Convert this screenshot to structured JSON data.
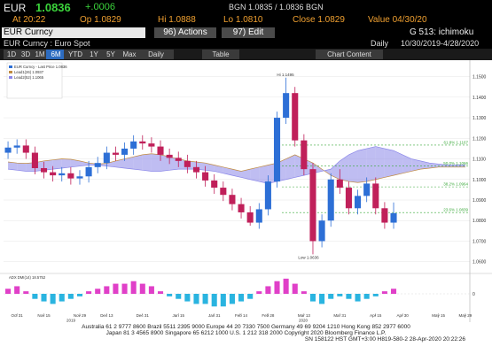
{
  "header": {
    "ticker": "EUR",
    "price": "1.0836",
    "change": "+.0006",
    "quote": "BGN 1.0835 / 1.0836 BGN",
    "at": "At 20:22",
    "open": "Op 1.0829",
    "high": "Hi 1.0888",
    "low": "Lo 1.0810",
    "close": "Close 1.0829",
    "value": "Value 04/30/20"
  },
  "toolbar": {
    "security": "EUR Curncy",
    "actions": "96) Actions",
    "edit": "97) Edit",
    "function": "G 513: ichimoku"
  },
  "subheader": {
    "name": "EUR Curncy : Euro Spot",
    "period": "Daily",
    "range": "10/30/2019-4/28/2020"
  },
  "tabs": [
    "1D",
    "3D",
    "1M",
    "6M",
    "YTD",
    "1Y",
    "5Y",
    "Max",
    "Daily",
    "Table",
    "Chart Content"
  ],
  "selected_tab": "6M",
  "chart_data": {
    "type": "candlestick",
    "categories": [
      null,
      "Oct 31",
      null,
      null,
      "Nov 15",
      null,
      null,
      null,
      "Nov 29",
      null,
      null,
      "Dec 13",
      null,
      null,
      null,
      "Dec 31",
      null,
      null,
      null,
      "Jan 15",
      null,
      null,
      null,
      "Jan 31",
      null,
      null,
      "Feb 14",
      null,
      null,
      "Feb 28",
      null,
      null,
      null,
      "Mar 13",
      null,
      null,
      null,
      "Mar 31",
      null,
      null,
      null,
      "Apr 15",
      null,
      null,
      "Apr 30",
      null,
      null,
      null,
      "May 15",
      null,
      null,
      "May 29"
    ],
    "x_years": [
      "2019",
      "2020"
    ],
    "ohlc": [
      [
        1.113,
        1.1185,
        1.11,
        1.1155
      ],
      [
        1.1155,
        1.1195,
        1.1125,
        1.1165
      ],
      [
        1.1165,
        1.1195,
        1.11,
        1.113
      ],
      [
        1.113,
        1.116,
        1.1025,
        1.1055
      ],
      [
        1.1055,
        1.1085,
        1.1005,
        1.1035
      ],
      [
        1.1035,
        1.1065,
        1.099,
        1.102
      ],
      [
        1.102,
        1.106,
        1.099,
        1.103
      ],
      [
        1.103,
        1.106,
        1.0975,
        1.1005
      ],
      [
        1.1005,
        1.1045,
        1.0975,
        1.1015
      ],
      [
        1.1015,
        1.109,
        1.0985,
        1.106
      ],
      [
        1.106,
        1.111,
        1.103,
        1.108
      ],
      [
        1.108,
        1.116,
        1.105,
        1.113
      ],
      [
        1.113,
        1.116,
        1.109,
        1.112
      ],
      [
        1.112,
        1.118,
        1.109,
        1.115
      ],
      [
        1.115,
        1.1215,
        1.112,
        1.1185
      ],
      [
        1.1185,
        1.1215,
        1.1145,
        1.1175
      ],
      [
        1.1175,
        1.1205,
        1.113,
        1.116
      ],
      [
        1.116,
        1.119,
        1.109,
        1.112
      ],
      [
        1.112,
        1.115,
        1.1075,
        1.1105
      ],
      [
        1.1105,
        1.1135,
        1.106,
        1.109
      ],
      [
        1.109,
        1.112,
        1.103,
        1.106
      ],
      [
        1.106,
        1.109,
        1.1005,
        1.1035
      ],
      [
        1.1035,
        1.1065,
        1.0965,
        1.0995
      ],
      [
        1.0995,
        1.1025,
        1.093,
        1.096
      ],
      [
        1.096,
        1.099,
        1.0895,
        1.0925
      ],
      [
        1.0925,
        1.0955,
        1.085,
        1.088
      ],
      [
        1.088,
        1.091,
        1.081,
        1.084
      ],
      [
        1.084,
        1.087,
        1.0775,
        1.079
      ],
      [
        1.079,
        1.0885,
        1.076,
        1.0855
      ],
      [
        1.0855,
        1.102,
        1.0825,
        1.099
      ],
      [
        1.099,
        1.133,
        1.096,
        1.13
      ],
      [
        1.13,
        1.1495,
        1.127,
        1.142
      ],
      [
        1.142,
        1.145,
        1.116,
        1.119
      ],
      [
        1.119,
        1.122,
        1.102,
        1.105
      ],
      [
        1.105,
        1.108,
        1.0636,
        1.07
      ],
      [
        1.07,
        1.083,
        1.067,
        1.08
      ],
      [
        1.08,
        1.103,
        1.077,
        1.1
      ],
      [
        1.1,
        1.105,
        1.093,
        1.096
      ],
      [
        1.096,
        1.099,
        1.083,
        1.086
      ],
      [
        1.086,
        1.095,
        1.083,
        1.092
      ],
      [
        1.092,
        1.101,
        1.089,
        1.098
      ],
      [
        1.098,
        1.101,
        1.083,
        1.086
      ],
      [
        1.086,
        1.089,
        1.076,
        1.079
      ],
      [
        1.079,
        1.0888,
        1.076,
        1.0836
      ],
      null,
      null,
      null,
      null,
      null,
      null,
      null,
      null
    ],
    "up_color": "#2d6fd6",
    "down_color": "#c0205a",
    "cloud": {
      "color": "#8a86e8",
      "series": [
        {
          "name": "Lead1(26) 1.0937",
          "color": "#c08a40",
          "values": [
            1.1085,
            1.108,
            1.1078,
            1.1082,
            1.109,
            1.1095,
            1.11,
            1.1098,
            1.109,
            1.108,
            1.1075,
            1.1078,
            1.109,
            1.11,
            1.111,
            1.112,
            1.1125,
            1.112,
            1.111,
            1.11,
            1.109,
            1.1085,
            1.108,
            1.107,
            1.106,
            1.105,
            1.104,
            1.105,
            1.106,
            1.107,
            1.108,
            1.11,
            1.112,
            1.11,
            1.108,
            1.105,
            1.102,
            1.1,
            1.099,
            1.0985,
            1.099,
            1.1,
            1.101,
            1.102,
            1.103,
            1.104,
            1.105,
            1.1055,
            1.106,
            1.106,
            1.106,
            1.106
          ]
        },
        {
          "name": "Lead2(52) 1.1065",
          "color": "#8a86e8",
          "values": [
            1.105,
            1.1045,
            1.104,
            1.104,
            1.1045,
            1.105,
            1.1055,
            1.106,
            1.1065,
            1.107,
            1.107,
            1.1065,
            1.106,
            1.1055,
            1.105,
            1.1045,
            1.104,
            1.104,
            1.1045,
            1.105,
            1.105,
            1.105,
            1.1045,
            1.104,
            1.103,
            1.102,
            1.101,
            1.1,
            1.099,
            1.098,
            1.099,
            1.1,
            1.101,
            1.102,
            1.103,
            1.104,
            1.105,
            1.109,
            1.112,
            1.114,
            1.115,
            1.116,
            1.115,
            1.114,
            1.112,
            1.11,
            1.109,
            1.108,
            1.1075,
            1.107,
            1.107,
            1.107
          ]
        }
      ]
    },
    "legend_title": "EUR Curncy - Last Price 1.0836",
    "ylim": [
      1.056,
      1.158
    ],
    "yticks": [
      {
        "value": 1.06,
        "label": "1.0600"
      },
      {
        "value": 1.07,
        "label": "1.0700"
      },
      {
        "value": 1.08,
        "label": "1.0800"
      },
      {
        "value": 1.09,
        "label": "1.0900"
      },
      {
        "value": 1.1,
        "label": "1.1000"
      },
      {
        "value": 1.11,
        "label": "1.1100"
      },
      {
        "value": 1.12,
        "label": "1.1200"
      },
      {
        "value": 1.13,
        "label": "1.1300"
      },
      {
        "value": 1.14,
        "label": "1.1400"
      },
      {
        "value": 1.15,
        "label": "1.1500"
      }
    ],
    "grid": true,
    "annotations": [
      {
        "value": 1.1495,
        "label": "Hi 1.1495"
      },
      {
        "value": 1.0636,
        "label": "Low 1.0636"
      }
    ],
    "fib_color": "#3aa83a",
    "fib": [
      {
        "value": 1.0839,
        "label": "23.6% 1.0839"
      },
      {
        "value": 1.0964,
        "label": "38.2% 1.0964"
      },
      {
        "value": 1.1066,
        "label": "50.0% 1.1066"
      },
      {
        "value": 1.1167,
        "label": "61.8% 1.1167"
      }
    ],
    "lower": {
      "ylim": [
        -0.007,
        0.007
      ],
      "yticks": [
        0
      ],
      "pos_color": "#e040c8",
      "neg_color": "#2ab4e0",
      "series": [
        {
          "name": "ADX DMI(14) 18.5752",
          "values": [
            0.002,
            0.003,
            0.001,
            -0.002,
            -0.003,
            -0.004,
            -0.003,
            -0.002,
            -0.001,
            0.001,
            0.002,
            0.003,
            0.004,
            0.004,
            0.005,
            0.004,
            0.003,
            0.001,
            -0.001,
            -0.002,
            -0.003,
            -0.004,
            -0.004,
            -0.005,
            -0.005,
            -0.004,
            -0.003,
            -0.002,
            0.001,
            0.003,
            0.005,
            0.006,
            0.004,
            0.001,
            -0.003,
            -0.004,
            -0.002,
            -0.001,
            -0.002,
            -0.003,
            -0.002,
            -0.001,
            0.001,
            0.002,
            null,
            null,
            null,
            null,
            null,
            null,
            null,
            null
          ]
        }
      ]
    }
  },
  "footer": [
    "Australia 61 2 9777 8600 Brazil 5511 2395 9000 Europe 44 20 7330 7500 Germany 49 69 9204 1210 Hong Kong 852 2977 6000",
    "Japan 81 3 4565 8900 Singapore 65 6212 1000 U.S. 1 212 318 2000 Copyright 2020 Bloomberg Finance L.P.",
    "SN 158122 HST GMT+3:00 H819-580-2 28-Apr-2020 20:22:26"
  ]
}
